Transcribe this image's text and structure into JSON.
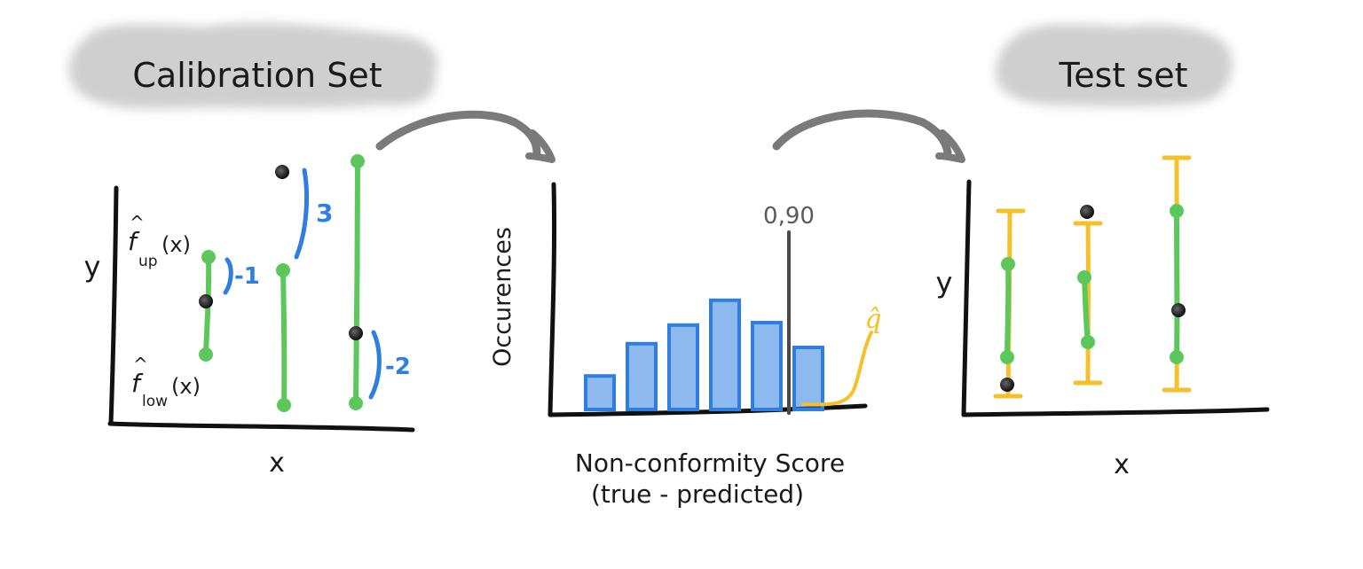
{
  "calibration": {
    "title": "Calibration Set",
    "y_label": "y",
    "x_label": "x",
    "upper_label": {
      "hat": "^",
      "base": "f",
      "sub": "up",
      "arg": "(x)"
    },
    "lower_label": {
      "hat": "^",
      "base": "f",
      "sub": "low",
      "arg": "(x)"
    },
    "residuals": [
      "-1",
      "3",
      "-2"
    ]
  },
  "histogram": {
    "y_label": "Occurences",
    "x_label_line1": "Non-conformity Score",
    "x_label_line2": "(true - predicted)",
    "quantile_label": "0,90",
    "qhat_label": "q̂",
    "bar_levels": [
      0.27,
      0.53,
      0.68,
      0.88,
      0.7,
      0.5
    ]
  },
  "test": {
    "title": "Test set",
    "y_label": "y",
    "x_label": "x"
  },
  "colors": {
    "green": "#5cc85c",
    "blue": "#2f7fe0",
    "yellow": "#f5c12a",
    "black": "#111111",
    "arrow": "#7a7a7a",
    "cloud": "#cfcfcf"
  }
}
